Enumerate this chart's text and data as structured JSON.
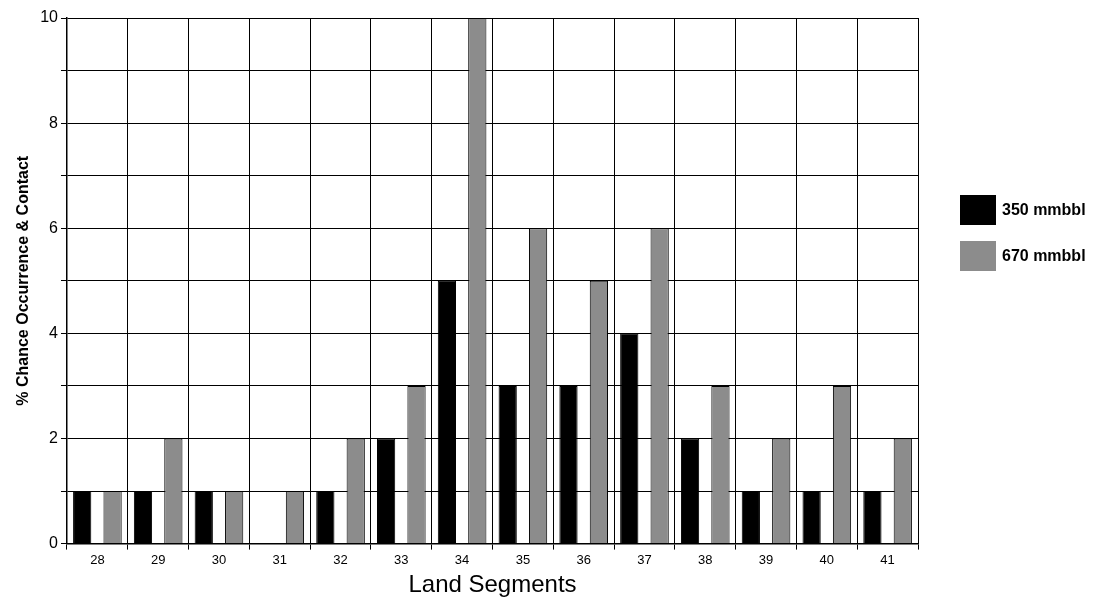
{
  "chart_data": {
    "type": "bar",
    "xlabel": "Land Segments",
    "ylabel": "% Chance Occurrence & Contact",
    "categories": [
      "28",
      "29",
      "30",
      "31",
      "32",
      "33",
      "34",
      "35",
      "36",
      "37",
      "38",
      "39",
      "40",
      "41"
    ],
    "series": [
      {
        "name": "350 mmbbl",
        "color": "#000000",
        "values": [
          1,
          1,
          1,
          0,
          1,
          2,
          5,
          3,
          3,
          4,
          2,
          1,
          1,
          1
        ]
      },
      {
        "name": "670 mmbbl",
        "color": "#8c8c8c",
        "values": [
          1,
          2,
          1,
          1,
          2,
          3,
          10,
          6,
          5,
          6,
          3,
          2,
          3,
          2
        ]
      }
    ],
    "ylim": [
      0,
      10
    ],
    "yticks": [
      0,
      {
        "value": 1,
        "label": null
      },
      2,
      {
        "value": 3,
        "label": null
      },
      4,
      {
        "value": 5,
        "label": null
      },
      6,
      {
        "value": 7,
        "label": null
      },
      8,
      {
        "value": 9,
        "label": null
      },
      10
    ],
    "grid": true,
    "legend": "right"
  }
}
